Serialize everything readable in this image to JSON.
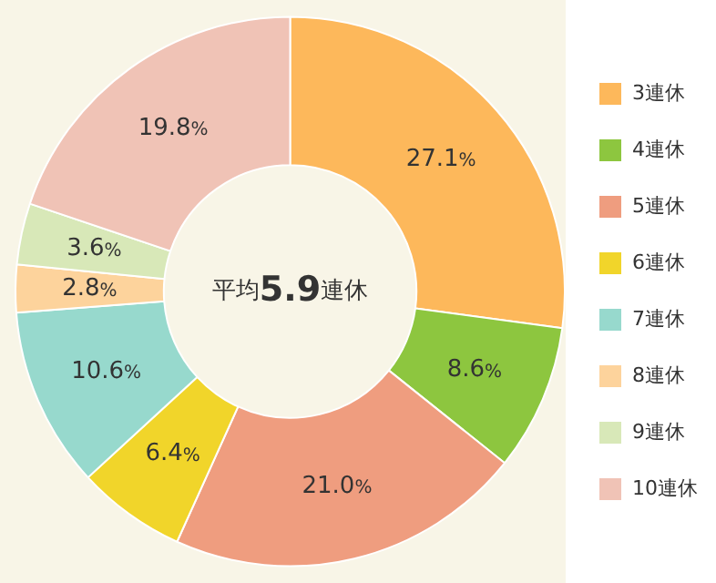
{
  "chart_data": {
    "type": "donut",
    "categories": [
      "3連休",
      "4連休",
      "5連休",
      "6連休",
      "7連休",
      "8連休",
      "9連休",
      "10連休"
    ],
    "values": [
      27.1,
      8.6,
      21.0,
      6.4,
      10.6,
      2.8,
      3.6,
      19.8
    ],
    "value_labels": [
      "27.1%",
      "8.6%",
      "21.0%",
      "6.4%",
      "10.6%",
      "2.8%",
      "3.6%",
      "19.8%"
    ],
    "colors": [
      "#fdb85b",
      "#8dc63f",
      "#ef9d7f",
      "#f1d52a",
      "#97d9cd",
      "#fdd39c",
      "#d8e8b8",
      "#f0c3b6"
    ],
    "annotations": [
      "平均5.9連休"
    ],
    "legend": "right"
  }
}
